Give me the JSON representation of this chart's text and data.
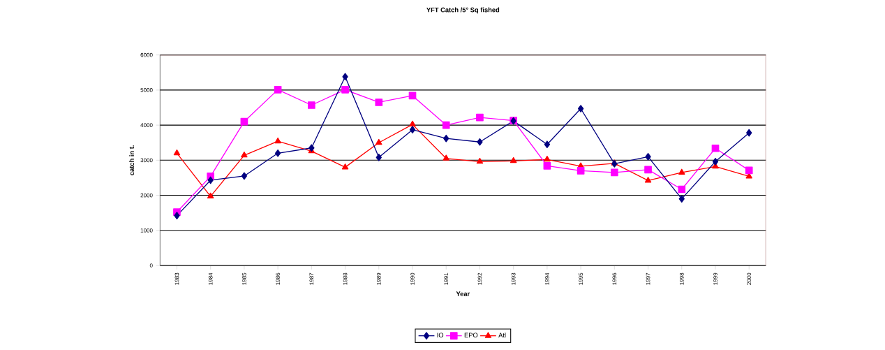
{
  "chart_data": {
    "type": "line",
    "title": "YFT Catch /5° Sq fished",
    "xlabel": "Year",
    "ylabel": "catch in t.",
    "categories": [
      "1983",
      "1984",
      "1985",
      "1986",
      "1987",
      "1988",
      "1989",
      "1990",
      "1991",
      "1992",
      "1993",
      "1994",
      "1995",
      "1996",
      "1997",
      "1998",
      "1999",
      "2000"
    ],
    "series": [
      {
        "name": "IO",
        "color": "#000080",
        "marker": "diamond",
        "values": [
          1420,
          2430,
          2550,
          3200,
          3350,
          5380,
          3080,
          3870,
          3620,
          3520,
          4120,
          3450,
          4470,
          2900,
          3100,
          1900,
          2960,
          3780
        ]
      },
      {
        "name": "EPO",
        "color": "#ff00ff",
        "marker": "square",
        "values": [
          1520,
          2540,
          4100,
          5010,
          4570,
          5010,
          4650,
          4840,
          4000,
          4220,
          4130,
          2840,
          2700,
          2650,
          2730,
          2170,
          3340,
          2710
        ]
      },
      {
        "name": "Atl",
        "color": "#ff0000",
        "marker": "triangle",
        "values": [
          3200,
          1970,
          3140,
          3540,
          3260,
          2800,
          3500,
          4020,
          3050,
          2960,
          2980,
          3020,
          2830,
          2910,
          2420,
          2650,
          2820,
          2540
        ]
      }
    ],
    "ylim": [
      0,
      6000
    ],
    "yticks": [
      0,
      1000,
      2000,
      3000,
      4000,
      5000,
      6000
    ],
    "grid": "y",
    "legend": "bottom"
  }
}
